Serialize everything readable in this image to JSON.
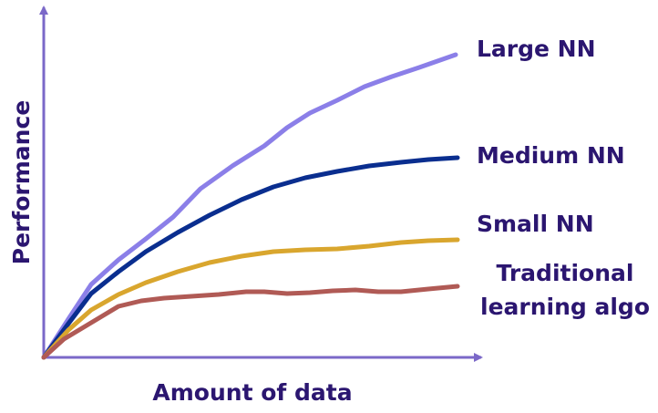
{
  "axes": {
    "x_label": "Amount of data",
    "y_label": "Performance"
  },
  "curves": [
    {
      "label": "Large NN"
    },
    {
      "label": "Medium NN"
    },
    {
      "label": "Small NN"
    },
    {
      "label_lines": [
        "Traditional",
        "learning algo"
      ]
    }
  ]
}
